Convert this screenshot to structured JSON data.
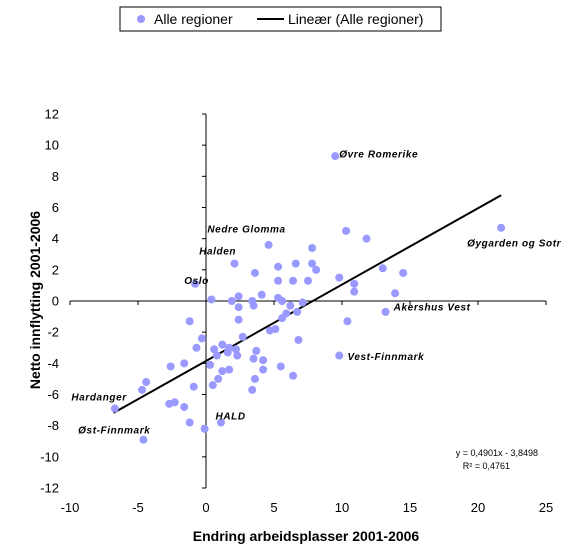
{
  "chart_data": {
    "type": "scatter",
    "xlabel": "Endring arbeidsplasser 2001-2006",
    "ylabel": "Netto innflytting 2001-2006",
    "xlim": [
      -10,
      25
    ],
    "ylim": [
      -12,
      12
    ],
    "xticks": [
      -10,
      -5,
      0,
      5,
      10,
      15,
      20,
      25
    ],
    "yticks": [
      -12,
      -10,
      -8,
      -6,
      -4,
      -2,
      0,
      2,
      4,
      6,
      8,
      10,
      12
    ],
    "grid": false,
    "legend_position": "top",
    "legend": {
      "points_label": "Alle regioner",
      "line_label": "Lineær (Alle regioner)"
    },
    "colors": {
      "points": "#9999ff",
      "trendline": "#000000",
      "axes": "#000000"
    },
    "trendline": {
      "slope": 0.4901,
      "intercept": -3.8498,
      "x_range": [
        -6.8,
        21.7
      ]
    },
    "equation_lines": [
      "y = 0,4901x - 3,8498",
      "R² = 0,4761"
    ],
    "annotations": [
      {
        "text": "Øvre Romerike",
        "x": 9.8,
        "y": 9.2
      },
      {
        "text": "Nedre Glomma",
        "x": 0.1,
        "y": 4.4
      },
      {
        "text": "Halden",
        "x": -0.5,
        "y": 3.0
      },
      {
        "text": "Oslo",
        "x": -1.6,
        "y": 1.1
      },
      {
        "text": "Øygarden og Sotra",
        "x": 19.2,
        "y": 3.5
      },
      {
        "text": "Akershus Vest",
        "x": 13.8,
        "y": -0.6
      },
      {
        "text": "Vest-Finnmark",
        "x": 10.4,
        "y": -3.8
      },
      {
        "text": "Hardanger",
        "x": -9.9,
        "y": -6.4
      },
      {
        "text": "HALD",
        "x": 0.7,
        "y": -7.6
      },
      {
        "text": "Øst-Finnmark",
        "x": -9.4,
        "y": -8.5
      }
    ],
    "series": [
      {
        "name": "Alle regioner",
        "points": [
          [
            9.5,
            9.3
          ],
          [
            21.7,
            4.7
          ],
          [
            10.3,
            4.5
          ],
          [
            11.8,
            4.0
          ],
          [
            7.8,
            3.4
          ],
          [
            4.6,
            3.6
          ],
          [
            7.8,
            2.4
          ],
          [
            6.6,
            2.4
          ],
          [
            2.1,
            2.4
          ],
          [
            5.3,
            2.2
          ],
          [
            8.1,
            2.0
          ],
          [
            7.5,
            1.3
          ],
          [
            13.0,
            2.1
          ],
          [
            14.5,
            1.8
          ],
          [
            9.8,
            1.5
          ],
          [
            6.4,
            1.3
          ],
          [
            5.3,
            1.3
          ],
          [
            10.9,
            1.1
          ],
          [
            3.6,
            1.8
          ],
          [
            -0.8,
            1.1
          ],
          [
            10.9,
            0.6
          ],
          [
            13.9,
            0.5
          ],
          [
            4.1,
            0.4
          ],
          [
            2.4,
            0.3
          ],
          [
            0.4,
            0.1
          ],
          [
            1.9,
            0.0
          ],
          [
            3.4,
            0.0
          ],
          [
            5.6,
            0.0
          ],
          [
            5.3,
            0.2
          ],
          [
            7.1,
            -0.1
          ],
          [
            6.2,
            -0.3
          ],
          [
            2.4,
            -0.4
          ],
          [
            3.5,
            -0.3
          ],
          [
            6.7,
            -0.7
          ],
          [
            5.9,
            -0.8
          ],
          [
            13.2,
            -0.7
          ],
          [
            5.6,
            -1.1
          ],
          [
            2.4,
            -1.2
          ],
          [
            10.4,
            -1.3
          ],
          [
            -1.2,
            -1.3
          ],
          [
            4.7,
            -1.9
          ],
          [
            5.1,
            -1.8
          ],
          [
            2.7,
            -2.3
          ],
          [
            6.8,
            -2.5
          ],
          [
            -0.3,
            -2.4
          ],
          [
            1.2,
            -2.8
          ],
          [
            1.7,
            -3.0
          ],
          [
            0.6,
            -3.1
          ],
          [
            2.2,
            -3.1
          ],
          [
            3.7,
            -3.2
          ],
          [
            2.3,
            -3.5
          ],
          [
            1.6,
            -3.3
          ],
          [
            0.8,
            -3.5
          ],
          [
            3.5,
            -3.7
          ],
          [
            4.2,
            -3.8
          ],
          [
            9.8,
            -3.5
          ],
          [
            -0.7,
            -3.0
          ],
          [
            -1.6,
            -4.0
          ],
          [
            0.3,
            -4.1
          ],
          [
            1.2,
            -4.5
          ],
          [
            -2.6,
            -4.2
          ],
          [
            4.2,
            -4.4
          ],
          [
            5.5,
            -4.2
          ],
          [
            1.7,
            -4.4
          ],
          [
            0.9,
            -5.0
          ],
          [
            3.6,
            -5.0
          ],
          [
            6.4,
            -4.8
          ],
          [
            0.5,
            -5.4
          ],
          [
            -0.9,
            -5.5
          ],
          [
            3.4,
            -5.7
          ],
          [
            -4.4,
            -5.2
          ],
          [
            -4.7,
            -5.7
          ],
          [
            -2.3,
            -6.5
          ],
          [
            -2.7,
            -6.6
          ],
          [
            -1.6,
            -6.8
          ],
          [
            -6.7,
            -6.9
          ],
          [
            -1.2,
            -7.8
          ],
          [
            1.1,
            -7.8
          ],
          [
            -0.1,
            -8.2
          ],
          [
            -4.6,
            -8.9
          ]
        ]
      }
    ]
  }
}
